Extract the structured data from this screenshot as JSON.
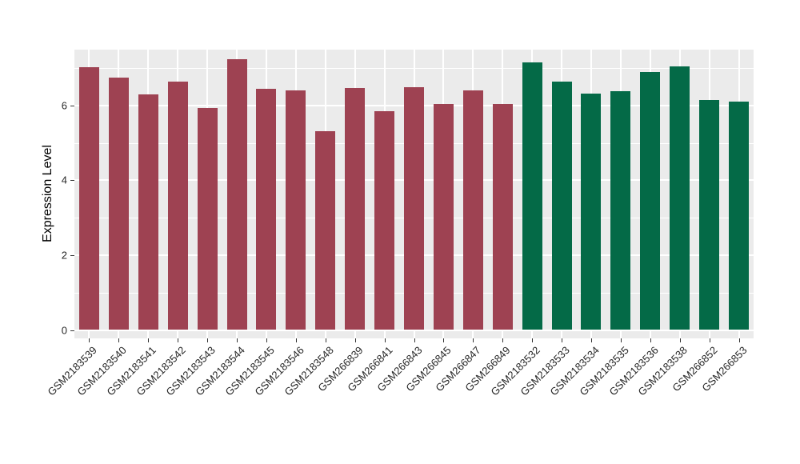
{
  "chart_data": {
    "type": "bar",
    "title": "",
    "xlabel": "",
    "ylabel": "Expression Level",
    "ylim": [
      0,
      7.5
    ],
    "yticks": [
      0,
      2,
      4,
      6
    ],
    "minor_gridlines": [
      1,
      3,
      5,
      7
    ],
    "grid": "on",
    "legend": "none",
    "panel_background": "#EBEBEB",
    "gridline_color": "#FFFFFF",
    "categories": [
      "GSM2183539",
      "GSM2183540",
      "GSM2183541",
      "GSM2183542",
      "GSM2183543",
      "GSM2183544",
      "GSM2183545",
      "GSM2183546",
      "GSM2183548",
      "GSM266839",
      "GSM266841",
      "GSM266843",
      "GSM266845",
      "GSM266847",
      "GSM266849",
      "GSM2183532",
      "GSM2183533",
      "GSM2183534",
      "GSM2183535",
      "GSM2183536",
      "GSM2183538",
      "GSM266852",
      "GSM266853"
    ],
    "values": [
      7.02,
      6.74,
      6.29,
      6.63,
      5.94,
      7.23,
      6.44,
      6.41,
      5.3,
      6.47,
      5.85,
      6.49,
      6.04,
      6.4,
      6.03,
      7.15,
      6.63,
      6.32,
      6.37,
      6.9,
      7.04,
      6.14,
      6.09
    ],
    "bar_groups": [
      "group1",
      "group1",
      "group1",
      "group1",
      "group1",
      "group1",
      "group1",
      "group1",
      "group1",
      "group1",
      "group1",
      "group1",
      "group1",
      "group1",
      "group1",
      "group2",
      "group2",
      "group2",
      "group2",
      "group2",
      "group2",
      "group2",
      "group2"
    ],
    "group_colors": {
      "group1": "#9E4252",
      "group2": "#046A47"
    }
  }
}
